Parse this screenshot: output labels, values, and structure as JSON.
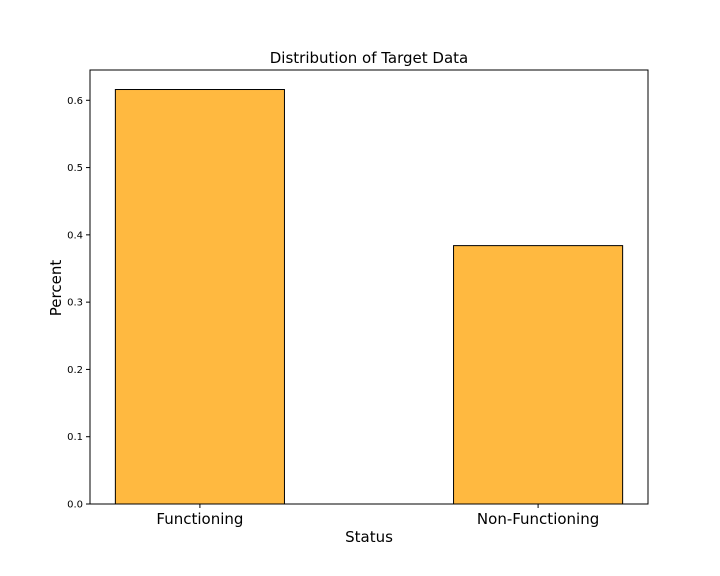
{
  "chart_data": {
    "type": "bar",
    "title": "Distribution of Target Data",
    "xlabel": "Status",
    "ylabel": "Percent",
    "categories": [
      "Functioning",
      "Non-Functioning"
    ],
    "values": [
      0.616,
      0.384
    ],
    "ylim": [
      0,
      0.645
    ],
    "yticks": [
      0.0,
      0.1,
      0.2,
      0.3,
      0.4,
      0.5,
      0.6
    ],
    "ytick_labels": [
      "0.0",
      "0.1",
      "0.2",
      "0.3",
      "0.4",
      "0.5",
      "0.6"
    ],
    "bar_color": "#ffb940",
    "edge_color": "#000000",
    "grid": false
  }
}
